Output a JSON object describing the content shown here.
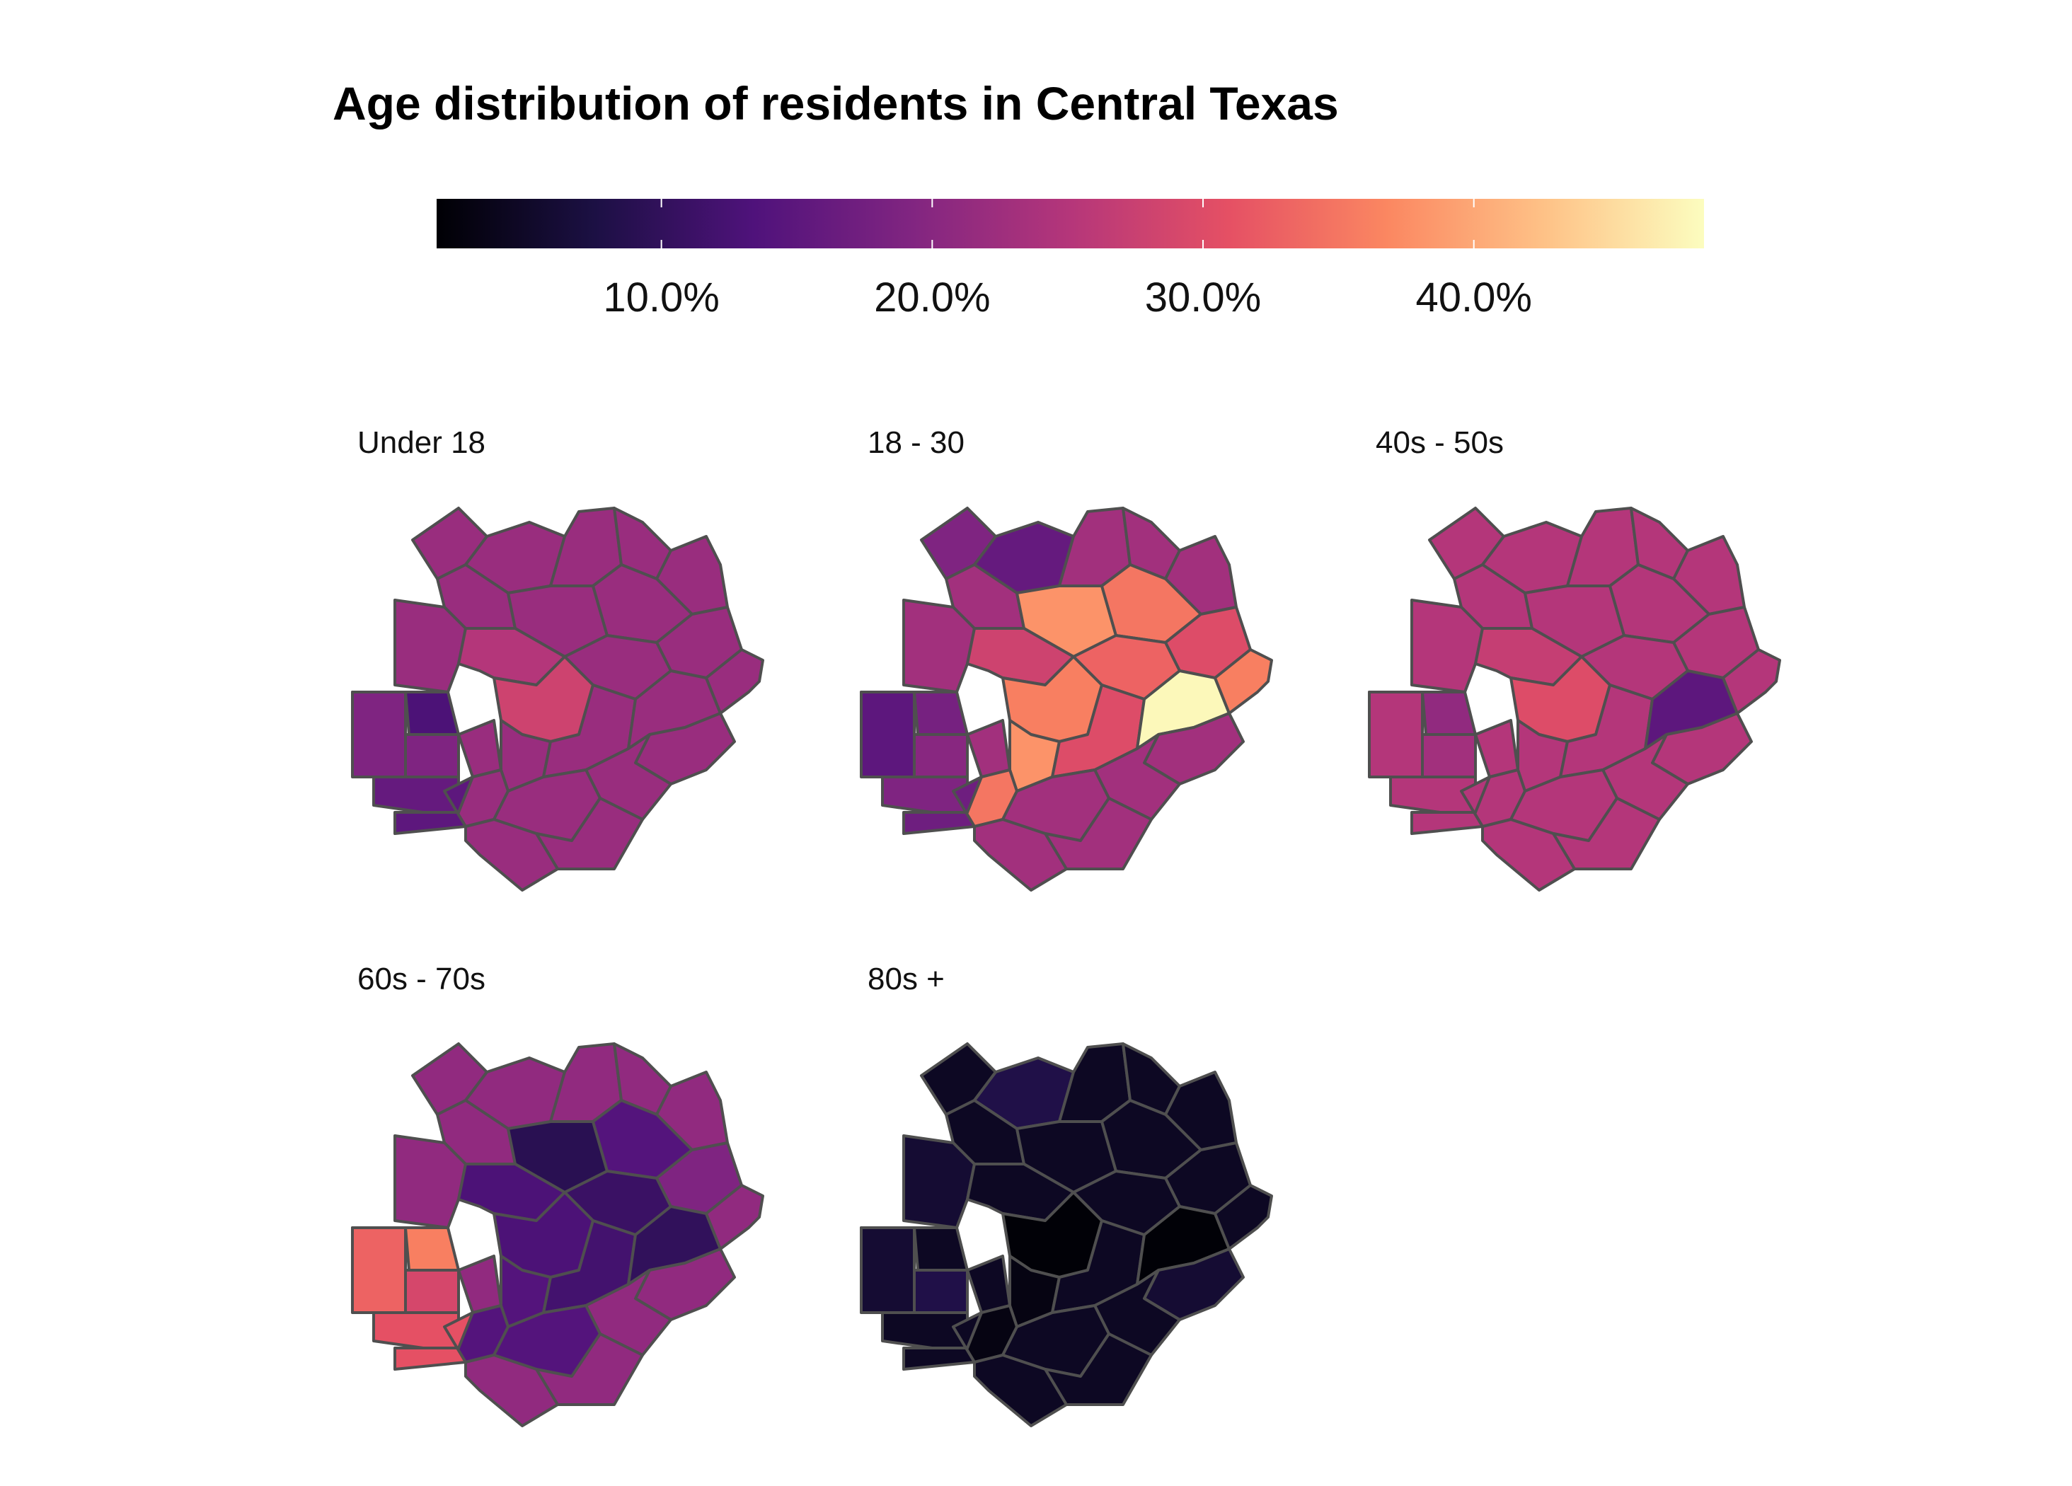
{
  "title": "Age distribution of residents in Central Texas",
  "legend": {
    "palette": "magma",
    "colors": [
      "#000004",
      "#1c1044",
      "#4f127b",
      "#812581",
      "#b5367a",
      "#e55064",
      "#fb8761",
      "#fec287",
      "#fcfdbf"
    ],
    "min": 0.017,
    "max": 0.485,
    "ticks": [
      {
        "value": 0.1,
        "label": "10.0%"
      },
      {
        "value": 0.2,
        "label": "20.0%"
      },
      {
        "value": 0.3,
        "label": "30.0%"
      },
      {
        "value": 0.4,
        "label": "40.0%"
      }
    ]
  },
  "panels": [
    {
      "key": "under18",
      "label": "Under 18",
      "default": 0.22,
      "values": {
        "wsw": 0.19,
        "w2": 0.19,
        "nwk": 0.13,
        "sw1": 0.16,
        "sw2": 0.15,
        "ctr2": 0.25,
        "ccen": 0.28
      }
    },
    {
      "key": "age18_30",
      "label": "18 - 30",
      "default": 0.23,
      "values": {
        "wsw": 0.15,
        "w2": 0.2,
        "nwk": 0.18,
        "sw1": 0.19,
        "sw2": 0.17,
        "ne2": 0.38,
        "ne3": 0.35,
        "ne4": 0.3,
        "ctr1": 0.33,
        "ctr2": 0.28,
        "ccen": 0.36,
        "cc2": 0.38,
        "cc3": 0.3,
        "s1": 0.35,
        "e1": 0.48,
        "e2": 0.36,
        "n2": 0.16,
        "n1": 0.19
      }
    },
    {
      "key": "age40_50",
      "label": "40s - 50s",
      "default": 0.25,
      "values": {
        "nwk": 0.21,
        "w2": 0.23,
        "ccen": 0.3,
        "ctr2": 0.27,
        "e1": 0.15
      }
    },
    {
      "key": "age60_70",
      "label": "60s - 70s",
      "default": 0.21,
      "values": {
        "wsw": 0.33,
        "w2": 0.29,
        "nwk": 0.36,
        "sw1": 0.31,
        "sw2": 0.31,
        "ne2": 0.09,
        "ne3": 0.14,
        "ctr1": 0.11,
        "ctr2": 0.13,
        "ccen": 0.13,
        "cc2": 0.14,
        "cc3": 0.12,
        "s1": 0.14,
        "s2": 0.14,
        "e1": 0.1,
        "ne4": 0.19
      }
    },
    {
      "key": "age80plus",
      "label": "80s +",
      "default": 0.045,
      "values": {
        "n2": 0.08,
        "nw2": 0.06,
        "wsw": 0.06,
        "w2": 0.08,
        "ccen": 0.02,
        "cc2": 0.03,
        "e1": 0.02,
        "se1": 0.06,
        "s1": 0.03
      }
    }
  ]
}
